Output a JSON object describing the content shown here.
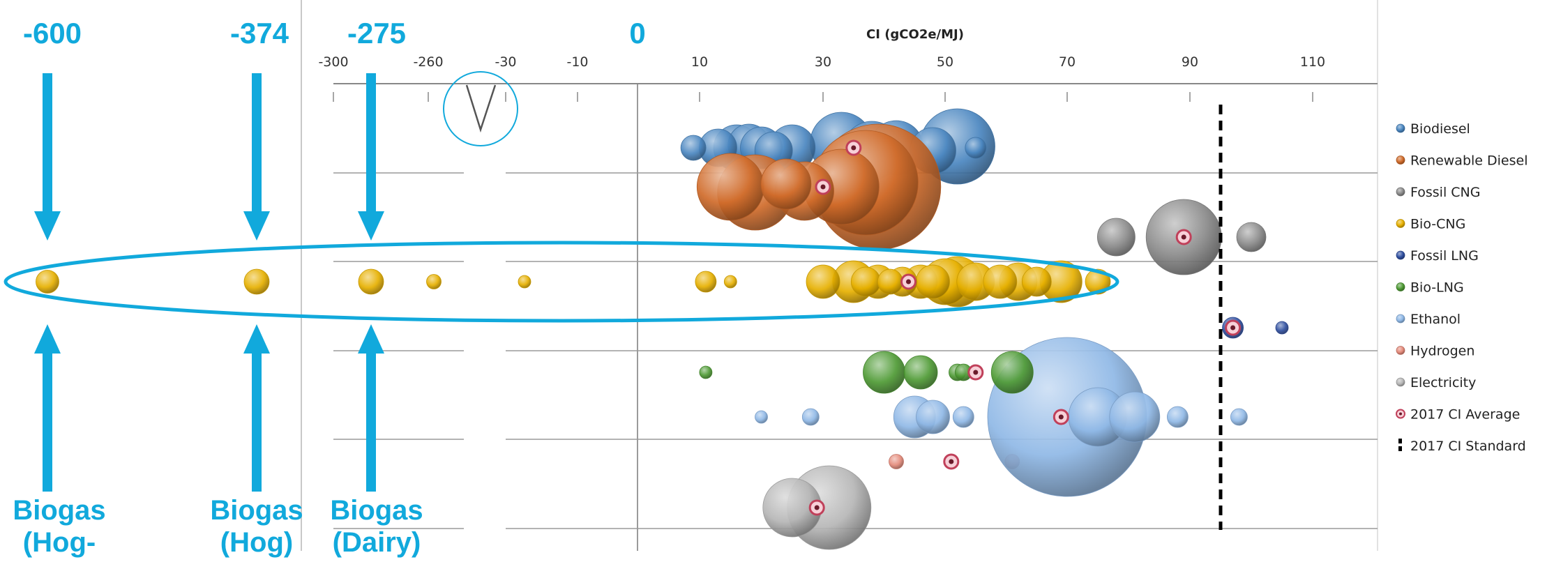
{
  "chart_data": {
    "type": "scatter",
    "title": "CI (gCO2e/MJ)",
    "xlabel": "CI (gCO2e/MJ)",
    "ylabel": "",
    "x_tick_labels": [
      "-300",
      "-260",
      "-30",
      "-10",
      "10",
      "30",
      "50",
      "70",
      "90",
      "110"
    ],
    "axis_break": true,
    "standard_2017": 95,
    "legend_position": "right",
    "grid": true,
    "series": [
      {
        "name": "Biodiesel",
        "color": "#4a86c0",
        "points": [
          {
            "x": 9,
            "s": 0.4
          },
          {
            "x": 13,
            "s": 0.7
          },
          {
            "x": 16,
            "s": 0.9
          },
          {
            "x": 18,
            "s": 0.8
          },
          {
            "x": 20,
            "s": 0.8
          },
          {
            "x": 22,
            "s": 0.7
          },
          {
            "x": 25,
            "s": 0.9
          },
          {
            "x": 33,
            "s": 1.3
          },
          {
            "x": 38,
            "s": 1.2
          },
          {
            "x": 42,
            "s": 1.1
          },
          {
            "x": 48,
            "s": 0.9
          },
          {
            "x": 52,
            "s": 1.6
          },
          {
            "x": 55,
            "s": 0.3
          }
        ]
      },
      {
        "name": "Renewable Diesel",
        "color": "#d06b2a",
        "points": [
          {
            "x": 15,
            "s": 1.4
          },
          {
            "x": 19,
            "s": 1.6
          },
          {
            "x": 24,
            "s": 1.0
          },
          {
            "x": 27,
            "s": 1.2
          },
          {
            "x": 33,
            "s": 1.6
          },
          {
            "x": 37,
            "s": 2.3
          },
          {
            "x": 39,
            "s": 2.8
          }
        ]
      },
      {
        "name": "Fossil CNG",
        "color": "#8a8a8a",
        "points": [
          {
            "x": 78,
            "s": 0.7
          },
          {
            "x": 89,
            "s": 1.6
          },
          {
            "x": 100,
            "s": 0.5
          }
        ]
      },
      {
        "name": "Bio-CNG",
        "color": "#e6b000",
        "points": [
          {
            "x": -600,
            "s": 0.35
          },
          {
            "x": -374,
            "s": 0.4
          },
          {
            "x": -275,
            "s": 0.4
          },
          {
            "x": -225,
            "s": 0.15
          },
          {
            "x": -125,
            "s": 0.1
          },
          {
            "x": 11,
            "s": 0.3
          },
          {
            "x": 15,
            "s": 0.1
          },
          {
            "x": 30,
            "s": 0.6
          },
          {
            "x": 35,
            "s": 0.8
          },
          {
            "x": 37,
            "s": 0.5
          },
          {
            "x": 39,
            "s": 0.6
          },
          {
            "x": 41,
            "s": 0.4
          },
          {
            "x": 43,
            "s": 0.5
          },
          {
            "x": 46,
            "s": 0.6
          },
          {
            "x": 48,
            "s": 0.6
          },
          {
            "x": 50,
            "s": 0.9
          },
          {
            "x": 52,
            "s": 1.0
          },
          {
            "x": 55,
            "s": 0.7
          },
          {
            "x": 59,
            "s": 0.6
          },
          {
            "x": 62,
            "s": 0.7
          },
          {
            "x": 65,
            "s": 0.5
          },
          {
            "x": 69,
            "s": 0.8
          },
          {
            "x": 75,
            "s": 0.4
          }
        ]
      },
      {
        "name": "Fossil LNG",
        "color": "#2f4fa0",
        "points": [
          {
            "x": 97,
            "s": 0.3
          },
          {
            "x": 105,
            "s": 0.1
          }
        ]
      },
      {
        "name": "Bio-LNG",
        "color": "#4e9a34",
        "points": [
          {
            "x": 11,
            "s": 0.1
          },
          {
            "x": 40,
            "s": 0.8
          },
          {
            "x": 46,
            "s": 0.6
          },
          {
            "x": 52,
            "s": 0.2
          },
          {
            "x": 53,
            "s": 0.2
          },
          {
            "x": 61,
            "s": 0.8
          }
        ]
      },
      {
        "name": "Ethanol",
        "color": "#8fb8e6",
        "points": [
          {
            "x": 20,
            "s": 0.1
          },
          {
            "x": 28,
            "s": 0.2
          },
          {
            "x": 45,
            "s": 0.8
          },
          {
            "x": 48,
            "s": 0.6
          },
          {
            "x": 53,
            "s": 0.3
          },
          {
            "x": 70,
            "s": 3.6
          },
          {
            "x": 75,
            "s": 1.2
          },
          {
            "x": 81,
            "s": 1.0
          },
          {
            "x": 88,
            "s": 0.3
          },
          {
            "x": 98,
            "s": 0.2
          }
        ]
      },
      {
        "name": "Hydrogen",
        "color": "#e48a7a",
        "points": [
          {
            "x": 42,
            "s": 0.15
          },
          {
            "x": 61,
            "s": 0.15
          }
        ]
      },
      {
        "name": "Electricity",
        "color": "#b6b6b6",
        "points": [
          {
            "x": 25,
            "s": 1.2
          },
          {
            "x": 31,
            "s": 1.8
          }
        ]
      },
      {
        "name": "2017 CI Average",
        "color": "#c0405a",
        "points": [
          {
            "fuel": "Biodiesel",
            "x": 35
          },
          {
            "fuel": "Renewable Diesel",
            "x": 30
          },
          {
            "fuel": "Fossil CNG",
            "x": 89
          },
          {
            "fuel": "Bio-CNG",
            "x": 44
          },
          {
            "fuel": "Fossil LNG",
            "x": 97
          },
          {
            "fuel": "Bio-LNG",
            "x": 55
          },
          {
            "fuel": "Ethanol",
            "x": 69
          },
          {
            "fuel": "Hydrogen",
            "x": 51
          },
          {
            "fuel": "Electricity",
            "x": 29
          }
        ]
      },
      {
        "name": "2017 CI Standard",
        "color": "#000000"
      }
    ]
  },
  "annotations": [
    {
      "value_label": "-600",
      "source_label": "Biogas (Hog-",
      "x": -600
    },
    {
      "value_label": "-374",
      "source_label": "Biogas (Hog)",
      "x": -374
    },
    {
      "value_label": "-275",
      "source_label": "Biogas (Dairy)",
      "x": -275
    },
    {
      "value_label": "0",
      "x": 0
    }
  ],
  "annotation_color": "#11a9dc"
}
